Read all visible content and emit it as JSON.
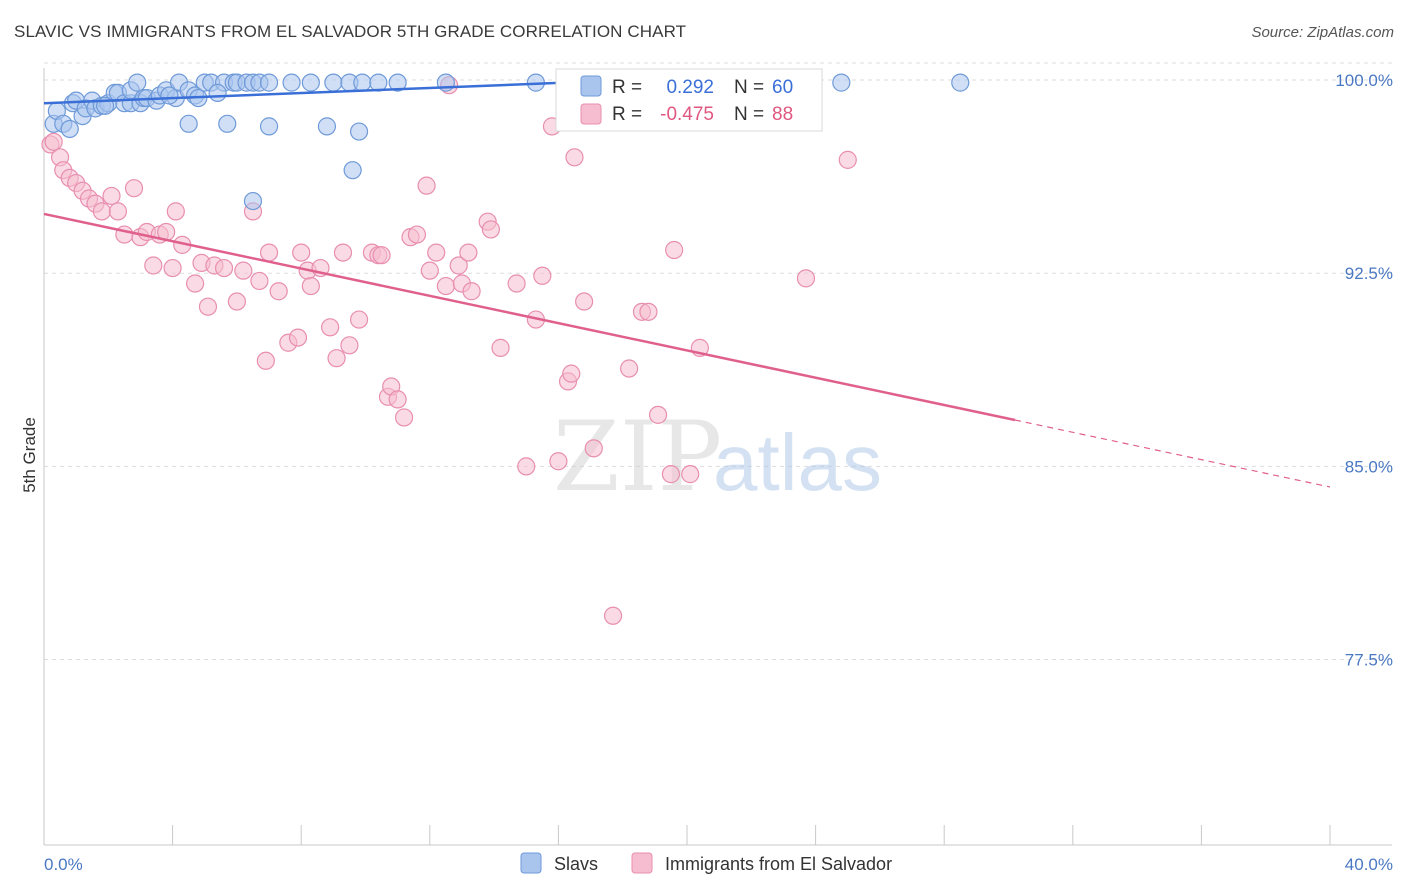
{
  "title": "SLAVIC VS IMMIGRANTS FROM EL SALVADOR 5TH GRADE CORRELATION CHART",
  "source": "Source: ZipAtlas.com",
  "watermark": {
    "part1": "ZIP",
    "part2": "atlas"
  },
  "legend_box": {
    "rows": [
      {
        "r_label": "R =",
        "r_value": "0.292",
        "n_label": "N =",
        "n_value": "60"
      },
      {
        "r_label": "R =",
        "r_value": "-0.475",
        "n_label": "N =",
        "n_value": "88"
      }
    ]
  },
  "bottom_legend": [
    "Slavs",
    "Immigrants from El Salvador"
  ],
  "colors": {
    "blue_fill": "#a9c5ee",
    "blue_stroke": "#6f9ad8",
    "blue_line": "#3a6fd8",
    "pink_fill": "#f6bdd0",
    "pink_stroke": "#e88eaf",
    "pink_line": "#e0608d",
    "grid": "#dddddd",
    "tick_label": "#4a78c2"
  },
  "chart_data": {
    "type": "scatter",
    "title": "SLAVIC VS IMMIGRANTS FROM EL SALVADOR 5TH GRADE CORRELATION CHART",
    "xlabel": "",
    "ylabel": "5th Grade",
    "xlim": [
      0,
      40
    ],
    "ylim": [
      70.3,
      100.7
    ],
    "x_tick_labels": [
      "0.0%",
      "40.0%"
    ],
    "y_ticks": [
      100.0,
      92.5,
      85.0,
      77.5
    ],
    "y_tick_labels": [
      "100.0%",
      "92.5%",
      "85.0%",
      "77.5%"
    ],
    "grid": true,
    "legend_position": "top-center",
    "series": [
      {
        "name": "Slavs",
        "r": 0.292,
        "n": 60,
        "trend": {
          "x": [
            0,
            16.2
          ],
          "y": [
            99.1,
            99.9
          ]
        },
        "points": [
          [
            0.3,
            98.3
          ],
          [
            0.4,
            98.8
          ],
          [
            0.6,
            98.3
          ],
          [
            0.8,
            98.1
          ],
          [
            0.9,
            99.1
          ],
          [
            1.0,
            99.2
          ],
          [
            1.2,
            98.6
          ],
          [
            1.3,
            98.9
          ],
          [
            1.5,
            99.2
          ],
          [
            1.6,
            98.9
          ],
          [
            1.8,
            99.0
          ],
          [
            2.0,
            99.1
          ],
          [
            2.2,
            99.5
          ],
          [
            2.3,
            99.5
          ],
          [
            2.5,
            99.1
          ],
          [
            2.7,
            99.1
          ],
          [
            2.7,
            99.6
          ],
          [
            3.0,
            99.1
          ],
          [
            3.1,
            99.3
          ],
          [
            3.2,
            99.3
          ],
          [
            3.5,
            99.2
          ],
          [
            3.6,
            99.4
          ],
          [
            3.8,
            99.6
          ],
          [
            4.1,
            99.3
          ],
          [
            4.2,
            99.9
          ],
          [
            4.5,
            99.6
          ],
          [
            4.7,
            99.4
          ],
          [
            4.8,
            99.3
          ],
          [
            5.0,
            99.9
          ],
          [
            5.2,
            99.9
          ],
          [
            5.6,
            99.9
          ],
          [
            5.9,
            99.9
          ],
          [
            6.0,
            99.9
          ],
          [
            6.3,
            99.9
          ],
          [
            6.5,
            99.9
          ],
          [
            6.7,
            99.9
          ],
          [
            7.0,
            99.9
          ],
          [
            7.7,
            99.9
          ],
          [
            8.3,
            99.9
          ],
          [
            9.0,
            99.9
          ],
          [
            9.5,
            99.9
          ],
          [
            9.9,
            99.9
          ],
          [
            10.4,
            99.9
          ],
          [
            11.0,
            99.9
          ],
          [
            12.5,
            99.9
          ],
          [
            15.3,
            99.9
          ],
          [
            18.5,
            99.9
          ],
          [
            24.8,
            99.9
          ],
          [
            28.5,
            99.9
          ],
          [
            4.5,
            98.3
          ],
          [
            5.7,
            98.3
          ],
          [
            7.0,
            98.2
          ],
          [
            8.8,
            98.2
          ],
          [
            9.8,
            98.0
          ],
          [
            9.6,
            96.5
          ],
          [
            6.5,
            95.3
          ],
          [
            2.9,
            99.9
          ],
          [
            1.9,
            99.0
          ],
          [
            3.9,
            99.4
          ],
          [
            5.4,
            99.5
          ]
        ]
      },
      {
        "name": "Immigrants from El Salvador",
        "r": -0.475,
        "n": 88,
        "trend": {
          "x": [
            0,
            30.2
          ],
          "y": [
            94.8,
            86.8
          ]
        },
        "trend_dashed": {
          "x": [
            30.2,
            40
          ],
          "y": [
            86.8,
            84.2
          ]
        },
        "points": [
          [
            0.2,
            97.5
          ],
          [
            0.3,
            97.6
          ],
          [
            0.5,
            97.0
          ],
          [
            0.6,
            96.5
          ],
          [
            0.8,
            96.2
          ],
          [
            1.0,
            96.0
          ],
          [
            1.2,
            95.7
          ],
          [
            1.4,
            95.4
          ],
          [
            1.6,
            95.2
          ],
          [
            1.8,
            94.9
          ],
          [
            2.1,
            95.5
          ],
          [
            2.3,
            94.9
          ],
          [
            2.5,
            94.0
          ],
          [
            2.8,
            95.8
          ],
          [
            3.0,
            93.9
          ],
          [
            3.2,
            94.1
          ],
          [
            3.4,
            92.8
          ],
          [
            3.6,
            94.0
          ],
          [
            3.8,
            94.1
          ],
          [
            4.0,
            92.7
          ],
          [
            4.1,
            94.9
          ],
          [
            4.3,
            93.6
          ],
          [
            4.7,
            92.1
          ],
          [
            5.1,
            91.2
          ],
          [
            4.9,
            92.9
          ],
          [
            5.3,
            92.8
          ],
          [
            5.6,
            92.7
          ],
          [
            6.0,
            91.4
          ],
          [
            6.2,
            92.6
          ],
          [
            6.5,
            94.9
          ],
          [
            6.7,
            92.2
          ],
          [
            6.9,
            89.1
          ],
          [
            7.0,
            93.3
          ],
          [
            7.3,
            91.8
          ],
          [
            7.6,
            89.8
          ],
          [
            7.9,
            90.0
          ],
          [
            8.0,
            93.3
          ],
          [
            8.2,
            92.6
          ],
          [
            8.3,
            92.0
          ],
          [
            8.6,
            92.7
          ],
          [
            8.9,
            90.4
          ],
          [
            9.1,
            89.2
          ],
          [
            9.3,
            93.3
          ],
          [
            9.5,
            89.7
          ],
          [
            9.8,
            90.7
          ],
          [
            10.2,
            93.3
          ],
          [
            10.4,
            93.2
          ],
          [
            10.5,
            93.2
          ],
          [
            10.7,
            87.7
          ],
          [
            10.8,
            88.1
          ],
          [
            11.0,
            87.6
          ],
          [
            11.2,
            86.9
          ],
          [
            11.4,
            93.9
          ],
          [
            11.6,
            94.0
          ],
          [
            11.9,
            95.9
          ],
          [
            12.0,
            92.6
          ],
          [
            12.2,
            93.3
          ],
          [
            12.5,
            92.0
          ],
          [
            12.9,
            92.8
          ],
          [
            13.0,
            92.1
          ],
          [
            13.2,
            93.3
          ],
          [
            13.3,
            91.8
          ],
          [
            13.8,
            94.5
          ],
          [
            13.9,
            94.2
          ],
          [
            14.2,
            89.6
          ],
          [
            14.7,
            92.1
          ],
          [
            15.0,
            85.0
          ],
          [
            15.3,
            90.7
          ],
          [
            15.5,
            92.4
          ],
          [
            15.8,
            98.2
          ],
          [
            16.0,
            85.2
          ],
          [
            16.3,
            88.3
          ],
          [
            16.4,
            88.6
          ],
          [
            16.5,
            97.0
          ],
          [
            16.8,
            91.4
          ],
          [
            17.1,
            85.7
          ],
          [
            17.7,
            79.2
          ],
          [
            18.2,
            88.8
          ],
          [
            18.6,
            91.0
          ],
          [
            18.8,
            91.0
          ],
          [
            19.1,
            87.0
          ],
          [
            19.5,
            84.7
          ],
          [
            19.6,
            93.4
          ],
          [
            20.1,
            84.7
          ],
          [
            20.4,
            89.6
          ],
          [
            23.7,
            92.3
          ],
          [
            25.0,
            96.9
          ],
          [
            12.6,
            99.8
          ]
        ]
      }
    ]
  }
}
